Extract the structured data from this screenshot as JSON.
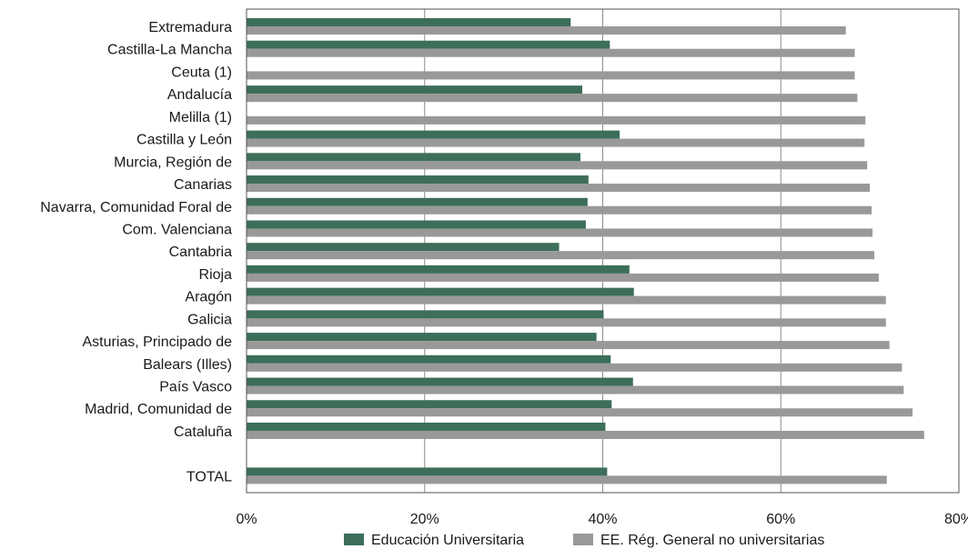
{
  "chart_data": {
    "type": "bar",
    "orientation": "horizontal",
    "categories": [
      "Extremadura",
      "Castilla-La Mancha",
      "Ceuta (1)",
      "Andalucía",
      "Melilla (1)",
      "Castilla y León",
      "Murcia, Región de",
      "Canarias",
      "Navarra, Comunidad Foral de",
      "Com. Valenciana",
      "Cantabria",
      "Rioja",
      "Aragón",
      "Galicia",
      "Asturias, Principado de",
      "Balears (Illes)",
      "País Vasco",
      "Madrid, Comunidad de",
      "Cataluña",
      "",
      "TOTAL"
    ],
    "series": [
      {
        "name": "Educación Universitaria",
        "color": "#3d6e5a",
        "values": [
          36.4,
          40.8,
          null,
          37.7,
          null,
          41.9,
          37.5,
          38.4,
          38.3,
          38.1,
          35.1,
          43.0,
          43.5,
          40.1,
          39.3,
          40.9,
          43.4,
          41.0,
          40.3,
          null,
          40.5
        ]
      },
      {
        "name": "EE. Rég. General no universitarias",
        "color": "#999999",
        "values": [
          67.3,
          68.3,
          68.3,
          68.6,
          69.5,
          69.4,
          69.7,
          70.0,
          70.2,
          70.3,
          70.5,
          71.0,
          71.8,
          71.8,
          72.2,
          73.6,
          73.8,
          74.8,
          76.1,
          null,
          71.9
        ]
      }
    ],
    "xlim": [
      0,
      80
    ],
    "xticks": [
      "0%",
      "20%",
      "40%",
      "60%",
      "80%"
    ],
    "grid": true,
    "legend": "bottom"
  }
}
